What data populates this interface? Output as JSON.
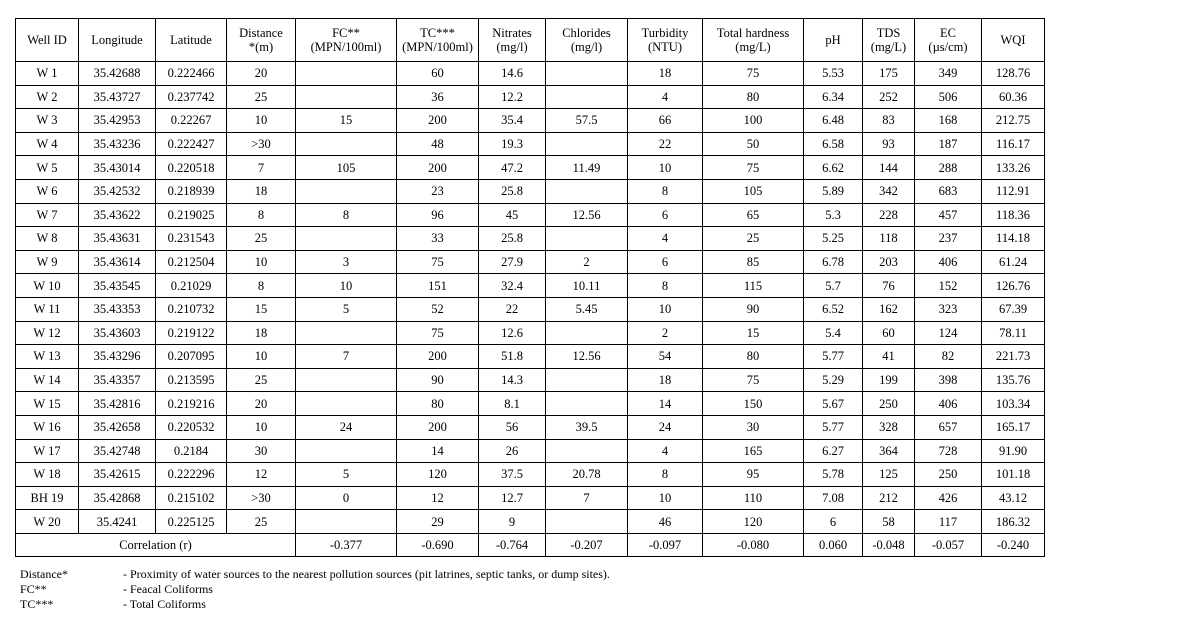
{
  "table": {
    "headers": [
      [
        "Well ID",
        ""
      ],
      [
        "Longitude",
        ""
      ],
      [
        "Latitude",
        ""
      ],
      [
        "Distance",
        "*(m)"
      ],
      [
        "FC**",
        "(MPN/100ml)"
      ],
      [
        "TC***",
        "(MPN/100ml)"
      ],
      [
        "Nitrates",
        "(mg/l)"
      ],
      [
        "Chlorides",
        "(mg/l)"
      ],
      [
        "Turbidity",
        "(NTU)"
      ],
      [
        "Total hardness",
        "(mg/L)"
      ],
      [
        "pH",
        ""
      ],
      [
        "TDS",
        "(mg/L)"
      ],
      [
        "EC",
        "(µs/cm)"
      ],
      [
        "WQI",
        ""
      ]
    ],
    "rows": [
      [
        "W 1",
        "35.42688",
        "0.222466",
        "20",
        "",
        "60",
        "14.6",
        "",
        "18",
        "75",
        "5.53",
        "175",
        "349",
        "128.76"
      ],
      [
        "W 2",
        "35.43727",
        "0.237742",
        "25",
        "",
        "36",
        "12.2",
        "",
        "4",
        "80",
        "6.34",
        "252",
        "506",
        "60.36"
      ],
      [
        "W 3",
        "35.42953",
        "0.22267",
        "10",
        "15",
        "200",
        "35.4",
        "57.5",
        "66",
        "100",
        "6.48",
        "83",
        "168",
        "212.75"
      ],
      [
        "W 4",
        "35.43236",
        "0.222427",
        ">30",
        "",
        "48",
        "19.3",
        "",
        "22",
        "50",
        "6.58",
        "93",
        "187",
        "116.17"
      ],
      [
        "W 5",
        "35.43014",
        "0.220518",
        "7",
        "105",
        "200",
        "47.2",
        "11.49",
        "10",
        "75",
        "6.62",
        "144",
        "288",
        "133.26"
      ],
      [
        "W 6",
        "35.42532",
        "0.218939",
        "18",
        "",
        "23",
        "25.8",
        "",
        "8",
        "105",
        "5.89",
        "342",
        "683",
        "112.91"
      ],
      [
        "W 7",
        "35.43622",
        "0.219025",
        "8",
        "8",
        "96",
        "45",
        "12.56",
        "6",
        "65",
        "5.3",
        "228",
        "457",
        "118.36"
      ],
      [
        "W 8",
        "35.43631",
        "0.231543",
        "25",
        "",
        "33",
        "25.8",
        "",
        "4",
        "25",
        "5.25",
        "118",
        "237",
        "114.18"
      ],
      [
        "W 9",
        "35.43614",
        "0.212504",
        "10",
        "3",
        "75",
        "27.9",
        "2",
        "6",
        "85",
        "6.78",
        "203",
        "406",
        "61.24"
      ],
      [
        "W 10",
        "35.43545",
        "0.21029",
        "8",
        "10",
        "151",
        "32.4",
        "10.11",
        "8",
        "115",
        "5.7",
        "76",
        "152",
        "126.76"
      ],
      [
        "W 11",
        "35.43353",
        "0.210732",
        "15",
        "5",
        "52",
        "22",
        "5.45",
        "10",
        "90",
        "6.52",
        "162",
        "323",
        "67.39"
      ],
      [
        "W 12",
        "35.43603",
        "0.219122",
        "18",
        "",
        "75",
        "12.6",
        "",
        "2",
        "15",
        "5.4",
        "60",
        "124",
        "78.11"
      ],
      [
        "W 13",
        "35.43296",
        "0.207095",
        "10",
        "7",
        "200",
        "51.8",
        "12.56",
        "54",
        "80",
        "5.77",
        "41",
        "82",
        "221.73"
      ],
      [
        "W 14",
        "35.43357",
        "0.213595",
        "25",
        "",
        "90",
        "14.3",
        "",
        "18",
        "75",
        "5.29",
        "199",
        "398",
        "135.76"
      ],
      [
        "W 15",
        "35.42816",
        "0.219216",
        "20",
        "",
        "80",
        "8.1",
        "",
        "14",
        "150",
        "5.67",
        "250",
        "406",
        "103.34"
      ],
      [
        "W 16",
        "35.42658",
        "0.220532",
        "10",
        "24",
        "200",
        "56",
        "39.5",
        "24",
        "30",
        "5.77",
        "328",
        "657",
        "165.17"
      ],
      [
        "W 17",
        "35.42748",
        "0.2184",
        "30",
        "",
        "14",
        "26",
        "",
        "4",
        "165",
        "6.27",
        "364",
        "728",
        "91.90"
      ],
      [
        "W 18",
        "35.42615",
        "0.222296",
        "12",
        "5",
        "120",
        "37.5",
        "20.78",
        "8",
        "95",
        "5.78",
        "125",
        "250",
        "101.18"
      ],
      [
        "BH 19",
        "35.42868",
        "0.215102",
        ">30",
        "0",
        "12",
        "12.7",
        "7",
        "10",
        "110",
        "7.08",
        "212",
        "426",
        "43.12"
      ],
      [
        "W 20",
        "35.4241",
        "0.225125",
        "25",
        "",
        "29",
        "9",
        "",
        "46",
        "120",
        "6",
        "58",
        "117",
        "186.32"
      ]
    ],
    "correlation": {
      "label": "Correlation (r)",
      "values": [
        "-0.377",
        "-0.690",
        "-0.764",
        "-0.207",
        "-0.097",
        "-0.080",
        "0.060",
        "-0.048",
        "-0.057",
        "-0.240"
      ]
    }
  },
  "notes": [
    {
      "key": "Distance*",
      "text": "- Proximity of water sources to the nearest pollution sources (pit latrines, septic tanks, or dump sites)."
    },
    {
      "key": "FC**",
      "text": "- Feacal Coliforms"
    },
    {
      "key": "TC***",
      "text": "- Total Coliforms"
    }
  ]
}
